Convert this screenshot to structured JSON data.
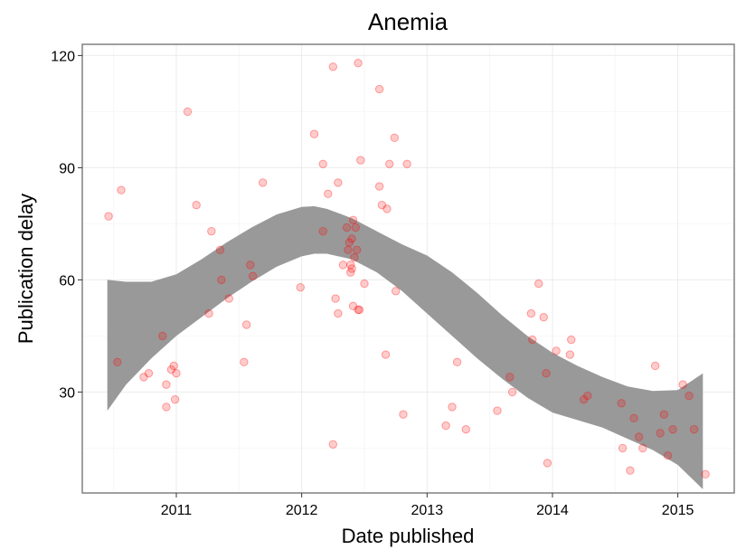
{
  "chart_data": {
    "type": "scatter",
    "title": "Anemia",
    "xlabel": "Date published",
    "ylabel": "Publication delay",
    "xlim": [
      2010.25,
      2015.45
    ],
    "ylim": [
      3,
      123
    ],
    "x_ticks": [
      2011,
      2012,
      2013,
      2014,
      2015
    ],
    "x_tick_labels": [
      "2011",
      "2012",
      "2013",
      "2014",
      "2015"
    ],
    "y_ticks": [
      30,
      60,
      90,
      120
    ],
    "y_tick_labels": [
      "30",
      "60",
      "90",
      "120"
    ],
    "grid": true,
    "legend": "none",
    "point_color": "#ff0000",
    "band_color": "#999999",
    "points": [
      {
        "x": 2010.46,
        "y": 77
      },
      {
        "x": 2010.56,
        "y": 84
      },
      {
        "x": 2010.53,
        "y": 38
      },
      {
        "x": 2010.74,
        "y": 34
      },
      {
        "x": 2010.78,
        "y": 35
      },
      {
        "x": 2010.89,
        "y": 45
      },
      {
        "x": 2010.92,
        "y": 32
      },
      {
        "x": 2010.92,
        "y": 26
      },
      {
        "x": 2010.96,
        "y": 36
      },
      {
        "x": 2010.98,
        "y": 37
      },
      {
        "x": 2010.99,
        "y": 28
      },
      {
        "x": 2011.0,
        "y": 35
      },
      {
        "x": 2011.09,
        "y": 105
      },
      {
        "x": 2011.16,
        "y": 80
      },
      {
        "x": 2011.26,
        "y": 51
      },
      {
        "x": 2011.28,
        "y": 73
      },
      {
        "x": 2011.35,
        "y": 68
      },
      {
        "x": 2011.36,
        "y": 60
      },
      {
        "x": 2011.42,
        "y": 55
      },
      {
        "x": 2011.54,
        "y": 38
      },
      {
        "x": 2011.56,
        "y": 48
      },
      {
        "x": 2011.59,
        "y": 64
      },
      {
        "x": 2011.61,
        "y": 61
      },
      {
        "x": 2011.69,
        "y": 86
      },
      {
        "x": 2011.99,
        "y": 58
      },
      {
        "x": 2012.1,
        "y": 99
      },
      {
        "x": 2012.17,
        "y": 91
      },
      {
        "x": 2012.17,
        "y": 73
      },
      {
        "x": 2012.21,
        "y": 83
      },
      {
        "x": 2012.25,
        "y": 117
      },
      {
        "x": 2012.25,
        "y": 16
      },
      {
        "x": 2012.27,
        "y": 55
      },
      {
        "x": 2012.29,
        "y": 51
      },
      {
        "x": 2012.29,
        "y": 86
      },
      {
        "x": 2012.33,
        "y": 64
      },
      {
        "x": 2012.36,
        "y": 74
      },
      {
        "x": 2012.37,
        "y": 68
      },
      {
        "x": 2012.38,
        "y": 70
      },
      {
        "x": 2012.39,
        "y": 62
      },
      {
        "x": 2012.39,
        "y": 64
      },
      {
        "x": 2012.4,
        "y": 71
      },
      {
        "x": 2012.4,
        "y": 63
      },
      {
        "x": 2012.41,
        "y": 76
      },
      {
        "x": 2012.41,
        "y": 53
      },
      {
        "x": 2012.42,
        "y": 66
      },
      {
        "x": 2012.43,
        "y": 74
      },
      {
        "x": 2012.44,
        "y": 68
      },
      {
        "x": 2012.45,
        "y": 118
      },
      {
        "x": 2012.45,
        "y": 52
      },
      {
        "x": 2012.46,
        "y": 52
      },
      {
        "x": 2012.47,
        "y": 92
      },
      {
        "x": 2012.5,
        "y": 59
      },
      {
        "x": 2012.62,
        "y": 111
      },
      {
        "x": 2012.62,
        "y": 85
      },
      {
        "x": 2012.64,
        "y": 80
      },
      {
        "x": 2012.67,
        "y": 40
      },
      {
        "x": 2012.68,
        "y": 79
      },
      {
        "x": 2012.7,
        "y": 91
      },
      {
        "x": 2012.74,
        "y": 98
      },
      {
        "x": 2012.75,
        "y": 57
      },
      {
        "x": 2012.81,
        "y": 24
      },
      {
        "x": 2012.84,
        "y": 91
      },
      {
        "x": 2013.15,
        "y": 21
      },
      {
        "x": 2013.2,
        "y": 26
      },
      {
        "x": 2013.24,
        "y": 38
      },
      {
        "x": 2013.31,
        "y": 20
      },
      {
        "x": 2013.56,
        "y": 25
      },
      {
        "x": 2013.66,
        "y": 34
      },
      {
        "x": 2013.68,
        "y": 30
      },
      {
        "x": 2013.83,
        "y": 51
      },
      {
        "x": 2013.84,
        "y": 44
      },
      {
        "x": 2013.89,
        "y": 59
      },
      {
        "x": 2013.93,
        "y": 50
      },
      {
        "x": 2013.95,
        "y": 35
      },
      {
        "x": 2013.96,
        "y": 11
      },
      {
        "x": 2014.03,
        "y": 41
      },
      {
        "x": 2014.14,
        "y": 40
      },
      {
        "x": 2014.15,
        "y": 44
      },
      {
        "x": 2014.25,
        "y": 28
      },
      {
        "x": 2014.28,
        "y": 29
      },
      {
        "x": 2014.55,
        "y": 27
      },
      {
        "x": 2014.56,
        "y": 15
      },
      {
        "x": 2014.62,
        "y": 9
      },
      {
        "x": 2014.65,
        "y": 23
      },
      {
        "x": 2014.69,
        "y": 18
      },
      {
        "x": 2014.72,
        "y": 15
      },
      {
        "x": 2014.82,
        "y": 37
      },
      {
        "x": 2014.86,
        "y": 19
      },
      {
        "x": 2014.89,
        "y": 24
      },
      {
        "x": 2014.92,
        "y": 13
      },
      {
        "x": 2014.96,
        "y": 20
      },
      {
        "x": 2015.04,
        "y": 32
      },
      {
        "x": 2015.09,
        "y": 29
      },
      {
        "x": 2015.13,
        "y": 20
      },
      {
        "x": 2015.22,
        "y": 8
      }
    ],
    "smooth_band": {
      "x": [
        2010.45,
        2010.6,
        2010.8,
        2011.0,
        2011.2,
        2011.4,
        2011.6,
        2011.8,
        2012.0,
        2012.1,
        2012.2,
        2012.4,
        2012.6,
        2012.8,
        2013.0,
        2013.2,
        2013.4,
        2013.6,
        2013.8,
        2014.0,
        2014.2,
        2014.4,
        2014.6,
        2014.8,
        2015.0,
        2015.2
      ],
      "upper": [
        60,
        59.5,
        59.5,
        61.5,
        65.5,
        70,
        74,
        77.5,
        79.5,
        79.7,
        79,
        76.5,
        73,
        69.5,
        66.5,
        62,
        56.5,
        50.5,
        45,
        40.5,
        37,
        34,
        31.5,
        30.3,
        30.5,
        35
      ],
      "lower": [
        25,
        32,
        39,
        45,
        50,
        55,
        59.5,
        63.5,
        66.3,
        67,
        67,
        65.5,
        62,
        57,
        51,
        45,
        39,
        33.5,
        28.5,
        24.5,
        22.5,
        20.5,
        17.5,
        14.5,
        10.5,
        4
      ]
    }
  }
}
